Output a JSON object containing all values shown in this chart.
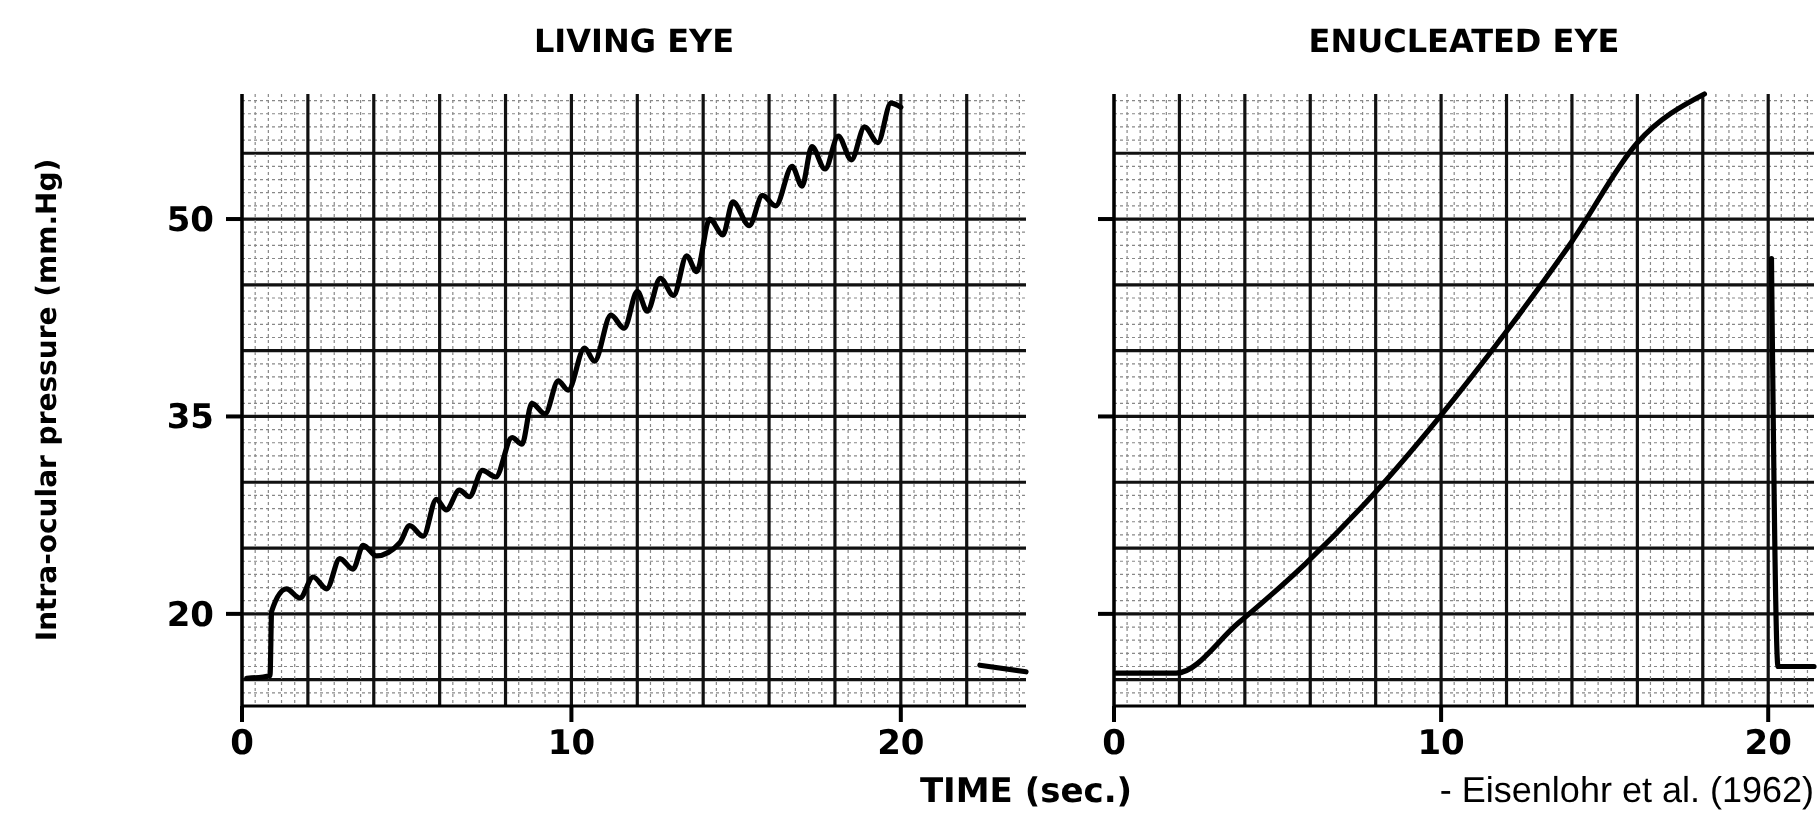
{
  "chart_data": [
    {
      "type": "line",
      "title": "LIVING EYE",
      "xlabel": "TIME (sec.)",
      "ylabel": "Intra-ocular pressure (mm.Hg)",
      "xlim": [
        0,
        23.8
      ],
      "ylim": [
        13,
        59.5
      ],
      "xticks": [
        0,
        10,
        20
      ],
      "yticks": [
        20,
        35,
        50
      ],
      "grid": true,
      "color": "#000000",
      "x": [
        0.14,
        0.85,
        0.9,
        1.35,
        1.76,
        2.16,
        2.57,
        2.97,
        3.37,
        3.68,
        4.08,
        4.79,
        5.09,
        5.5,
        5.9,
        6.2,
        6.6,
        6.9,
        7.3,
        7.7,
        8.2,
        8.5,
        8.8,
        9.2,
        9.6,
        9.9,
        10.4,
        10.7,
        11.2,
        11.6,
        12.0,
        12.3,
        12.7,
        13.1,
        13.5,
        13.8,
        14.2,
        14.6,
        14.9,
        15.4,
        15.8,
        16.2,
        16.7,
        17.0,
        17.3,
        17.7,
        18.1,
        18.5,
        18.9,
        19.3,
        19.7,
        20.0,
        21.0,
        22.4,
        23.8
      ],
      "values": [
        15.1,
        15.3,
        20.2,
        21.9,
        21.2,
        22.8,
        21.9,
        24.2,
        23.4,
        25.2,
        24.4,
        25.4,
        26.7,
        25.9,
        28.7,
        27.9,
        29.4,
        28.9,
        30.9,
        30.4,
        33.4,
        32.9,
        36.0,
        35.2,
        37.7,
        37.0,
        40.2,
        39.2,
        42.7,
        41.7,
        44.5,
        43.0,
        45.5,
        44.2,
        47.2,
        46.0,
        50.0,
        48.8,
        51.3,
        49.5,
        51.8,
        51.0,
        54.0,
        52.5,
        55.5,
        53.8,
        56.3,
        54.5,
        57.0,
        55.8,
        58.8,
        58.5,
        null,
        16.1,
        15.6
      ]
    },
    {
      "type": "line",
      "title": "ENUCLEATED EYE",
      "annotations": [
        "- Eisenlohr et al. (1962)"
      ],
      "xlim": [
        0,
        21.4
      ],
      "ylim": [
        13,
        59.5
      ],
      "xticks": [
        0,
        10,
        20
      ],
      "yticks": [
        20,
        35,
        50
      ],
      "tick_labels": "x",
      "grid": true,
      "color": "#000000",
      "x": [
        0.06,
        1.9,
        3.8,
        5.85,
        7.9,
        9.9,
        11.95,
        14.0,
        16.0,
        18.05,
        19.0,
        20.1,
        20.3,
        21.4
      ],
      "values": [
        15.5,
        15.5,
        19.3,
        23.8,
        29.0,
        34.8,
        41.3,
        48.3,
        55.8,
        59.5,
        null,
        47,
        16,
        16
      ]
    }
  ]
}
